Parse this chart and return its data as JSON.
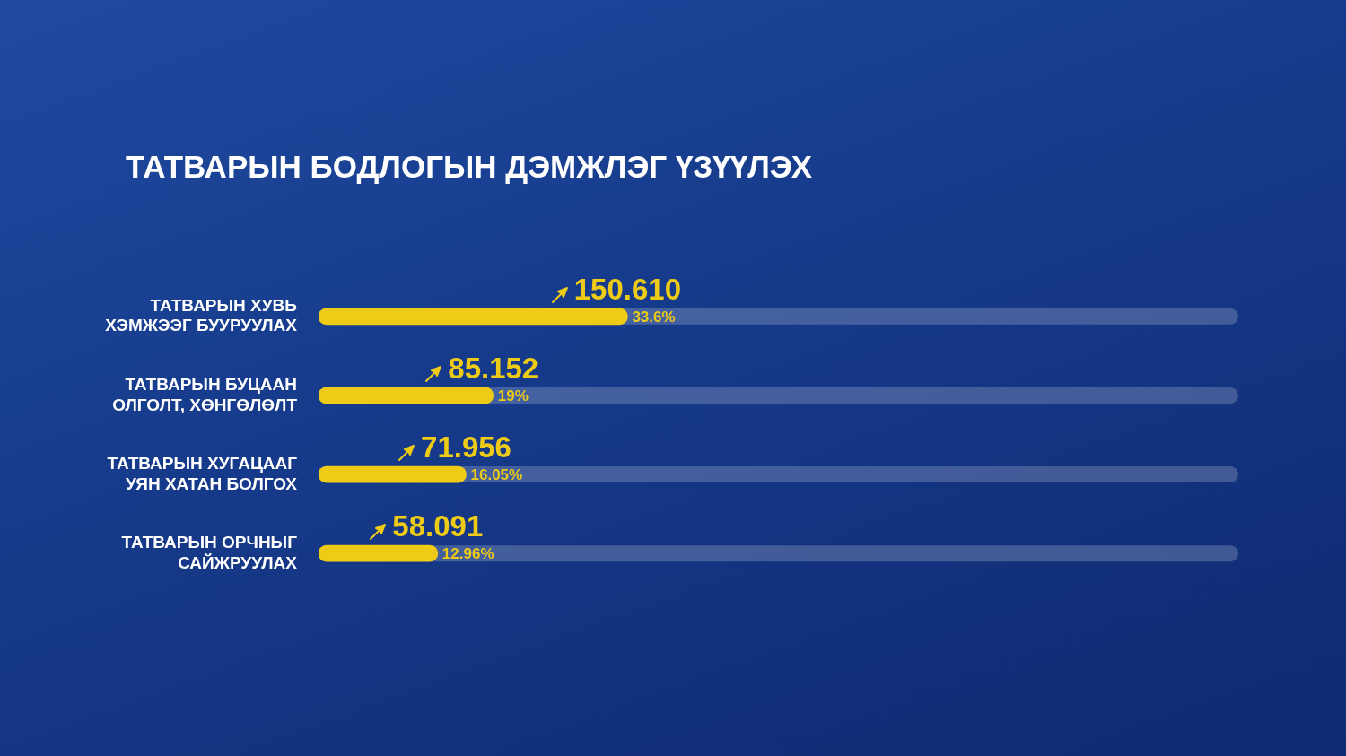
{
  "chart_data": {
    "type": "bar",
    "orientation": "horizontal",
    "title": "ТАТВАРЫН БОДЛОГЫН ДЭМЖЛЭГ ҮЗҮҮЛЭХ",
    "categories": [
      "ТАТВАРЫН ХУВЬ ХЭМЖЭЭГ БУУРУУЛАХ",
      "ТАТВАРЫН БУЦААН ОЛГОЛТ, ХӨНГӨЛӨЛТ",
      "ТАТВАРЫН ХУГАЦААГ УЯН ХАТАН БОЛГОХ",
      "ТАТВАРЫН ОРЧНЫГ САЙЖРУУЛАХ"
    ],
    "values": [
      33.6,
      19,
      16.05,
      12.96
    ],
    "value_labels": [
      "33.6%",
      "19%",
      "16.05%",
      "12.96%"
    ],
    "color": "#eecb16",
    "xlim": [
      0,
      100
    ],
    "tick_labels": "y",
    "legend": false,
    "annotations": [
      {
        "text": "150.610",
        "x": 33.6,
        "y": "ТАТВАРЫН ХУВЬ ХЭМЖЭЭГ БУУРУУЛАХ"
      },
      {
        "text": "85.152",
        "x": 19,
        "y": "ТАТВАРЫН БУЦААН ОЛГОЛТ, ХӨНГӨЛӨЛТ"
      },
      {
        "text": "71.956",
        "x": 16.05,
        "y": "ТАТВАРЫН ХУГАЦААГ УЯН ХАТАН БОЛГОХ"
      },
      {
        "text": "58.091",
        "x": 12.96,
        "y": "ТАТВАРЫН ОРЧНЫГ САЙЖРУУЛАХ"
      }
    ]
  }
}
